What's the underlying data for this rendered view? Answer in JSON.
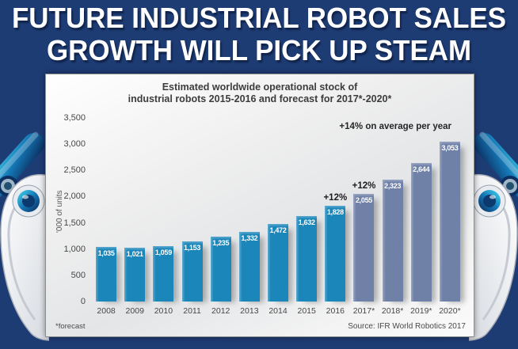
{
  "page": {
    "background_color": "#1e3c74"
  },
  "headline": {
    "line1": "FUTURE INDUSTRIAL ROBOT SALES",
    "line2": "GROWTH WILL PICK UP STEAM"
  },
  "chart": {
    "title_line1": "Estimated worldwide operational stock of",
    "title_line2": "industrial robots 2015-2016 and forecast for 2017*-2020*",
    "ylabel": "'000 of units",
    "footnote": "*forecast",
    "source": "Source: IFR World Robotics 2017",
    "annotation_avg": "+14% on average per year",
    "colors": {
      "actual": "#1b86ba",
      "forecast": "#7081a8"
    }
  },
  "chart_data": {
    "type": "bar",
    "title": "Estimated worldwide operational stock of industrial robots 2015-2016 and forecast for 2017*-2020*",
    "ylabel": "'000 of units",
    "categories": [
      "2008",
      "2009",
      "2010",
      "2011",
      "2012",
      "2013",
      "2014",
      "2015",
      "2016",
      "2017*",
      "2018*",
      "2019*",
      "2020*"
    ],
    "values": [
      1035,
      1021,
      1059,
      1153,
      1235,
      1332,
      1472,
      1632,
      1828,
      2055,
      2323,
      2644,
      3053
    ],
    "value_labels": [
      "1,035",
      "1,021",
      "1,059",
      "1,153",
      "1,235",
      "1,332",
      "1,472",
      "1,632",
      "1,828",
      "2,055",
      "2,323",
      "2,644",
      "3,053"
    ],
    "bar_kinds": [
      "actual",
      "actual",
      "actual",
      "actual",
      "actual",
      "actual",
      "actual",
      "actual",
      "actual",
      "forecast",
      "forecast",
      "forecast",
      "forecast"
    ],
    "growth_annotations": [
      {
        "index": 8,
        "text": "+12%"
      },
      {
        "index": 9,
        "text": "+12%"
      }
    ],
    "avg_annotation": "+14% on average per year",
    "ylim": [
      0,
      3500
    ],
    "ytick_values": [
      0,
      500,
      1000,
      1500,
      2000,
      2500,
      3000,
      3500
    ],
    "ytick_labels": [
      "0",
      "500",
      "1,000",
      "1,500",
      "2,000",
      "2,500",
      "3,000",
      "3,500"
    ],
    "grid": false,
    "legend": false,
    "footnote": "*forecast",
    "source": "Source: IFR World Robotics 2017"
  }
}
